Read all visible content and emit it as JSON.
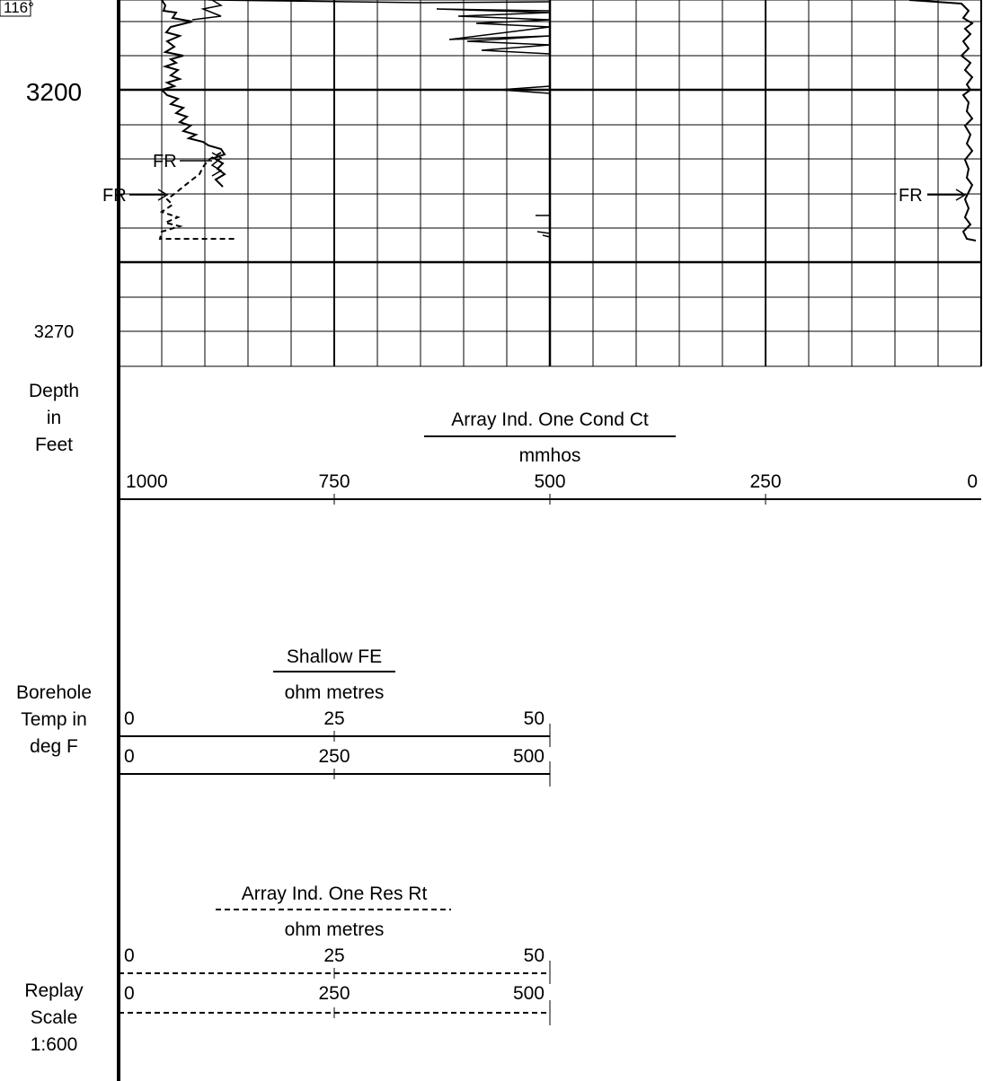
{
  "depth_track": {
    "temp_marker": "116°",
    "depth_major": "3200",
    "depth_minor": "3270",
    "depth_unit_label": [
      "Depth",
      "in",
      "Feet"
    ],
    "temp_label": [
      "Borehole",
      "Temp in",
      "deg F"
    ],
    "scale_label": [
      "Replay",
      "Scale",
      "1:600"
    ]
  },
  "markers": {
    "fr_left_inner": "FR",
    "fr_left_outer": "FR",
    "fr_right": "FR"
  },
  "headers": {
    "conductivity": {
      "title": "Array Ind. One Cond Ct",
      "unit": "mmhos",
      "ticks": [
        "1000",
        "750",
        "500",
        "250",
        "0"
      ]
    },
    "shallow_fe": {
      "title": "Shallow FE",
      "unit": "ohm metres",
      "scale1": [
        "0",
        "25",
        "50"
      ],
      "scale2": [
        "0",
        "250",
        "500"
      ]
    },
    "res_rt": {
      "title": "Array Ind. One Res Rt",
      "unit": "ohm metres",
      "scale1": [
        "0",
        "25",
        "50"
      ],
      "scale2": [
        "0",
        "250",
        "500"
      ]
    }
  },
  "colors": {
    "ink": "#000000",
    "paper": "#ffffff"
  },
  "chart_data": {
    "type": "line",
    "depth_range_ft": [
      3160,
      3275
    ],
    "grid": true,
    "series": [
      {
        "name": "Array Ind. One Cond Ct",
        "style": "solid",
        "track": "right",
        "depth": [
          3162,
          3165,
          3168,
          3172,
          3176,
          3180,
          3184,
          3188,
          3192,
          3196,
          3200,
          3204,
          3208,
          3212,
          3216,
          3220,
          3224,
          3228,
          3232,
          3236,
          3240
        ],
        "value": [
          10,
          4,
          3,
          5,
          3,
          6,
          4,
          3,
          5,
          4,
          4,
          3,
          4,
          5,
          3,
          4,
          5,
          3,
          4,
          3,
          4
        ]
      },
      {
        "name": "Shallow FE",
        "style": "solid",
        "track": "left",
        "depth": [
          3160,
          3170,
          3180,
          3190,
          3200,
          3205,
          3210,
          3214,
          3217,
          3219
        ],
        "value": [
          1,
          2,
          1,
          3,
          2,
          4,
          5,
          10,
          15,
          13
        ]
      },
      {
        "name": "Array Ind. One Res Rt",
        "style": "dashed",
        "track": "left",
        "depth": [
          3214,
          3218,
          3222,
          3226,
          3230,
          3234,
          3238,
          3240
        ],
        "value": [
          9,
          6,
          3,
          2,
          5,
          2,
          3,
          1
        ]
      }
    ]
  }
}
